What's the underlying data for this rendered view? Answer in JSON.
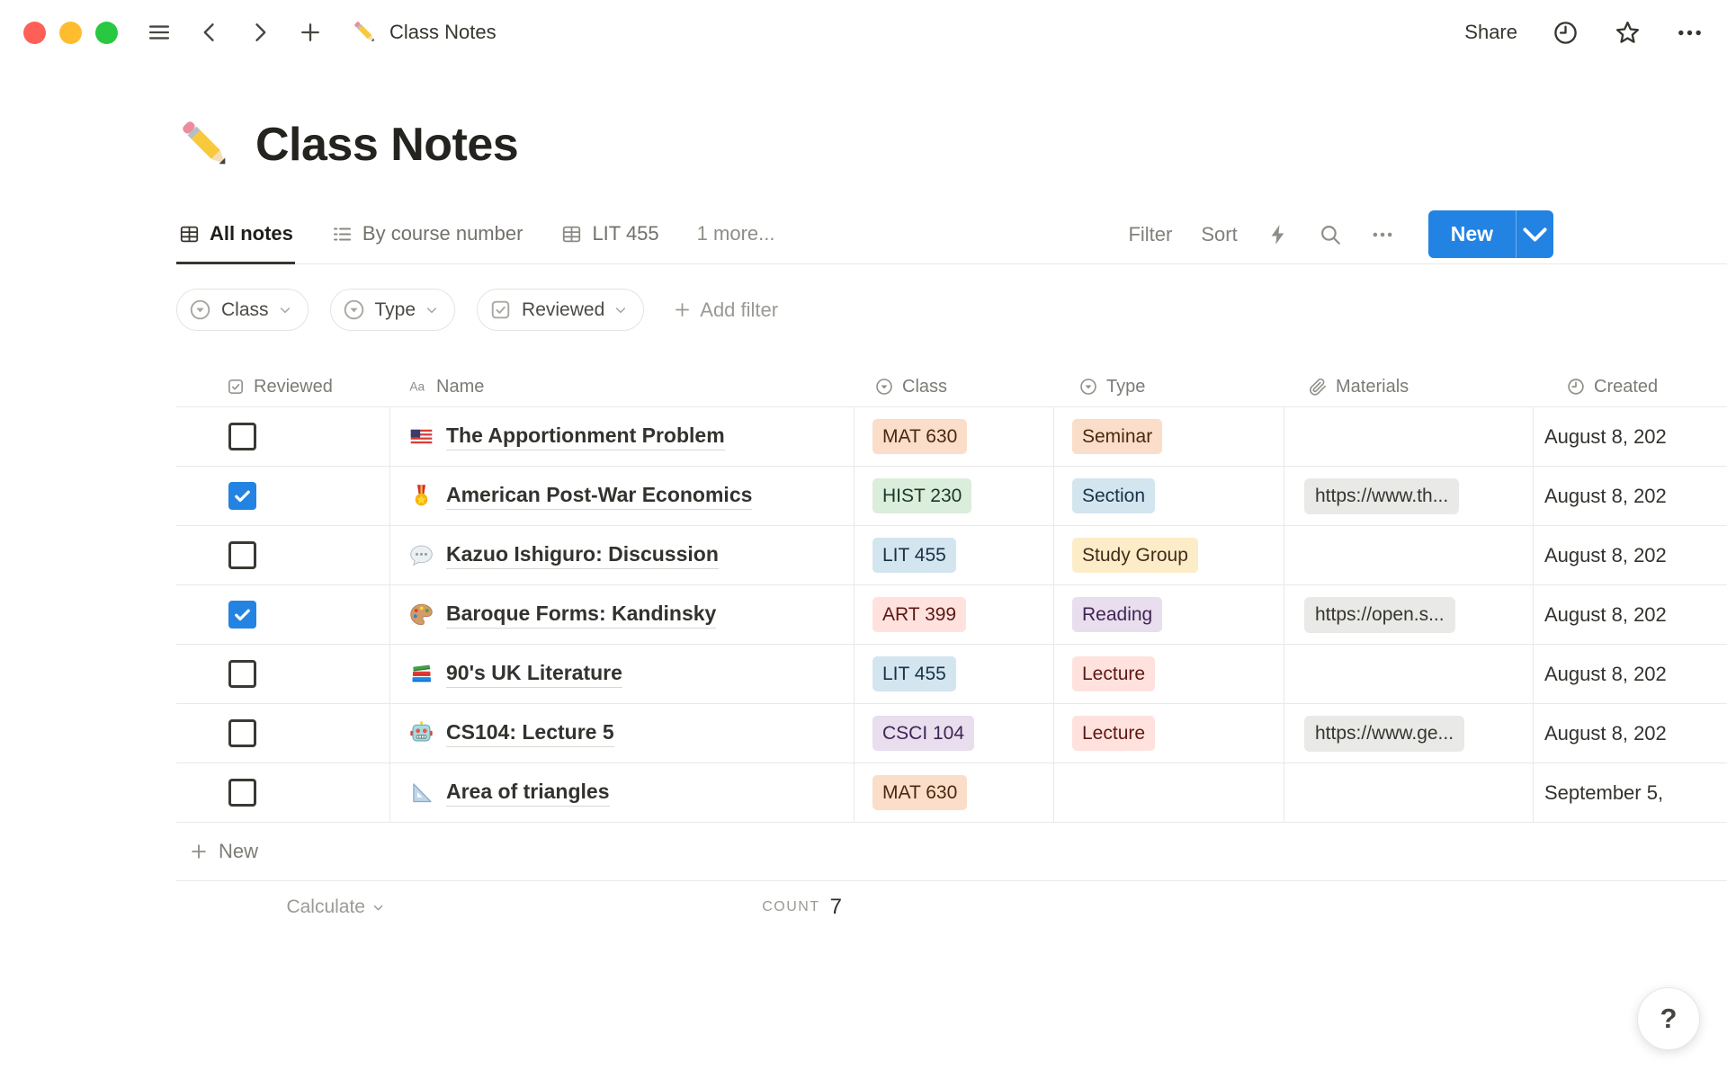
{
  "topbar": {
    "title": "Class Notes",
    "share_label": "Share"
  },
  "page": {
    "icon": "pencil",
    "title": "Class Notes"
  },
  "tabs": [
    {
      "label": "All notes",
      "icon": "table-view",
      "active": true
    },
    {
      "label": "By course number",
      "icon": "list-view",
      "active": false
    },
    {
      "label": "LIT 455",
      "icon": "table-view",
      "active": false
    },
    {
      "label": "1 more...",
      "icon": null,
      "active": false
    }
  ],
  "toolbar": {
    "filter_label": "Filter",
    "sort_label": "Sort",
    "new_label": "New"
  },
  "filters": {
    "chips": [
      {
        "label": "Class",
        "icon": "select-property"
      },
      {
        "label": "Type",
        "icon": "select-property"
      },
      {
        "label": "Reviewed",
        "icon": "checkbox-property"
      }
    ],
    "add_filter_label": "Add filter"
  },
  "table": {
    "columns": [
      "Reviewed",
      "Name",
      "Class",
      "Type",
      "Materials",
      "Created"
    ],
    "rows": [
      {
        "reviewed": false,
        "icon": "us-flag",
        "name": "The Apportionment Problem",
        "class": {
          "label": "MAT 630",
          "color": "orange"
        },
        "type": {
          "label": "Seminar",
          "color": "orange"
        },
        "materials": "",
        "created": "August 8, 202"
      },
      {
        "reviewed": true,
        "icon": "military-medal",
        "name": "American Post-War Economics",
        "class": {
          "label": "HIST 230",
          "color": "green"
        },
        "type": {
          "label": "Section",
          "color": "blue"
        },
        "materials": "https://www.th...",
        "created": "August 8, 202"
      },
      {
        "reviewed": false,
        "icon": "speech-balloon",
        "name": "Kazuo Ishiguro: Discussion",
        "class": {
          "label": "LIT 455",
          "color": "blue"
        },
        "type": {
          "label": "Study Group",
          "color": "yellow"
        },
        "materials": "",
        "created": "August 8, 202"
      },
      {
        "reviewed": true,
        "icon": "artist-palette",
        "name": "Baroque Forms: Kandinsky",
        "class": {
          "label": "ART 399",
          "color": "red"
        },
        "type": {
          "label": "Reading",
          "color": "purple"
        },
        "materials": "https://open.s...",
        "created": "August 8, 202"
      },
      {
        "reviewed": false,
        "icon": "books",
        "name": "90's UK Literature",
        "class": {
          "label": "LIT 455",
          "color": "blue"
        },
        "type": {
          "label": "Lecture",
          "color": "red"
        },
        "materials": "",
        "created": "August 8, 202"
      },
      {
        "reviewed": false,
        "icon": "robot",
        "name": "CS104: Lecture 5",
        "class": {
          "label": "CSCI 104",
          "color": "purple"
        },
        "type": {
          "label": "Lecture",
          "color": "red"
        },
        "materials": "https://www.ge...",
        "created": "August 8, 202"
      },
      {
        "reviewed": false,
        "icon": "triangular-ruler",
        "name": "Area of triangles",
        "class": {
          "label": "MAT 630",
          "color": "orange"
        },
        "type": null,
        "materials": "",
        "created": "September 5,"
      }
    ],
    "new_row_label": "New",
    "footer": {
      "calculate_label": "Calculate",
      "count_label": "COUNT",
      "count_value": "7"
    }
  },
  "help": {
    "label": "?"
  },
  "colors": {
    "accent_blue": "#2383E2",
    "checkbox_checked": "#2383E2",
    "materials_chip_bg": "#E9E9E7",
    "traffic_lights": [
      "#FE5F57",
      "#FEBC2E",
      "#28C840"
    ],
    "tags": {
      "orange": {
        "bg": "#FADEC9",
        "text": "#49290E"
      },
      "green": {
        "bg": "#DBEDDB",
        "text": "#1C3829"
      },
      "blue": {
        "bg": "#D3E5EF",
        "text": "#183347"
      },
      "red": {
        "bg": "#FFE2DD",
        "text": "#5D1715"
      },
      "yellow": {
        "bg": "#FDECC8",
        "text": "#402C1B"
      },
      "purple": {
        "bg": "#E8DEEE",
        "text": "#412454"
      }
    }
  }
}
